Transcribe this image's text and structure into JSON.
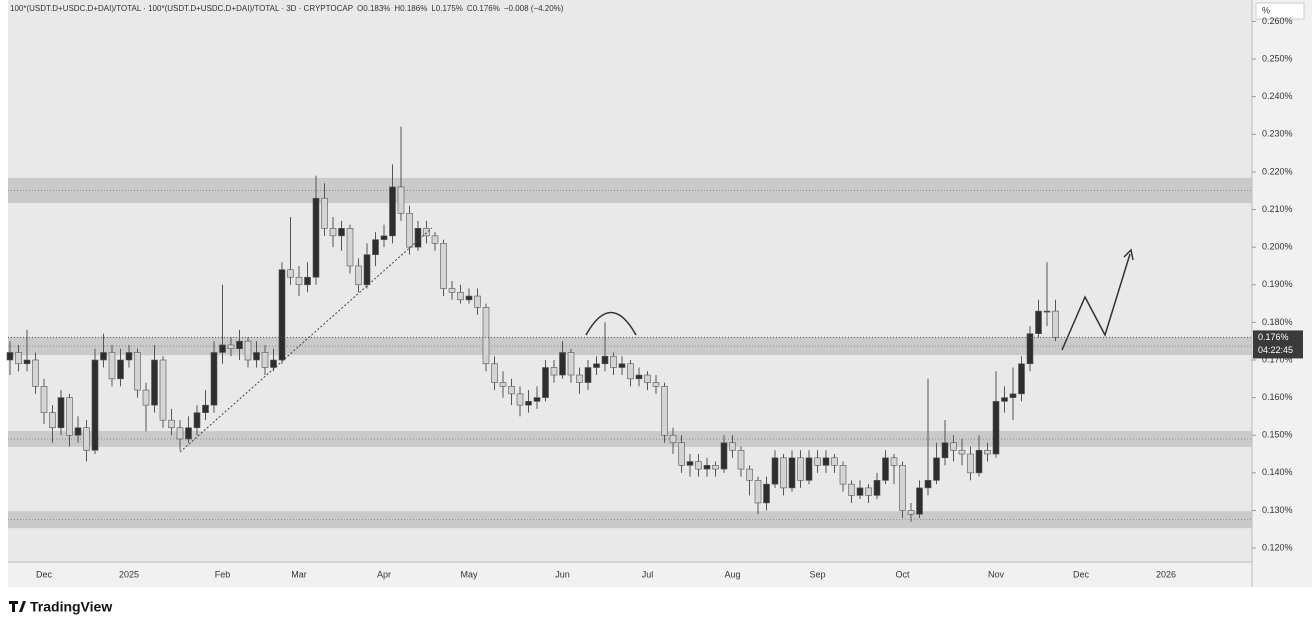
{
  "chart_data": {
    "type": "candlestick",
    "legend": {
      "symbol": "100*(USDT.D+USDC.D+DAI)/TOTAL · 100*(USDT.D+USDC.D+DAI)/TOTAL · 3D · CRYPTOCAP",
      "ohlc": [
        "O0.183%",
        "H0.186%",
        "L0.175%",
        "C0.176%"
      ],
      "change": "−0.008 (−4.20%)"
    },
    "unit_button": "%",
    "brand": "TradingView",
    "countdown": "04:22:45",
    "last_price": {
      "value": 0.176,
      "label": "0.176%"
    },
    "up_color": "#2e2e2e",
    "down_color": "#d4d4d4",
    "ylim": [
      0.1163,
      0.2657
    ],
    "yticks": [
      {
        "value": 0.12,
        "label": "0.120%"
      },
      {
        "value": 0.13,
        "label": "0.130%"
      },
      {
        "value": 0.14,
        "label": "0.140%"
      },
      {
        "value": 0.15,
        "label": "0.150%"
      },
      {
        "value": 0.16,
        "label": "0.160%"
      },
      {
        "value": 0.17,
        "label": "0.170%"
      },
      {
        "value": 0.18,
        "label": "0.180%"
      },
      {
        "value": 0.19,
        "label": "0.190%"
      },
      {
        "value": 0.2,
        "label": "0.200%"
      },
      {
        "value": 0.21,
        "label": "0.210%"
      },
      {
        "value": 0.22,
        "label": "0.220%"
      },
      {
        "value": 0.23,
        "label": "0.230%"
      },
      {
        "value": 0.24,
        "label": "0.240%"
      },
      {
        "value": 0.25,
        "label": "0.250%"
      },
      {
        "value": 0.26,
        "label": "0.260%"
      }
    ],
    "zones": [
      [
        0.2117,
        0.2184
      ],
      [
        0.1713,
        0.1761
      ],
      [
        0.1469,
        0.1511
      ],
      [
        0.1253,
        0.1298
      ]
    ],
    "categories": [
      null,
      null,
      null,
      null,
      "Dec",
      null,
      null,
      null,
      null,
      null,
      null,
      null,
      null,
      null,
      "2025",
      null,
      null,
      null,
      null,
      null,
      null,
      null,
      null,
      null,
      null,
      "Feb",
      null,
      null,
      null,
      null,
      null,
      null,
      null,
      null,
      "Mar",
      null,
      null,
      null,
      null,
      null,
      null,
      null,
      null,
      null,
      "Apr",
      null,
      null,
      null,
      null,
      null,
      null,
      null,
      null,
      null,
      "May",
      null,
      null,
      null,
      null,
      null,
      null,
      null,
      null,
      null,
      null,
      "Jun",
      null,
      null,
      null,
      null,
      null,
      null,
      null,
      null,
      null,
      "Jul",
      null,
      null,
      null,
      null,
      null,
      null,
      null,
      null,
      null,
      "Aug",
      null,
      null,
      null,
      null,
      null,
      null,
      null,
      null,
      null,
      "Sep",
      null,
      null,
      null,
      null,
      null,
      null,
      null,
      null,
      null,
      "Oct",
      null,
      null,
      null,
      null,
      null,
      null,
      null,
      null,
      null,
      null,
      "Nov",
      null,
      null,
      null,
      null,
      null,
      null,
      null,
      null,
      null,
      "Dec",
      null,
      null,
      null,
      null,
      null,
      null,
      null,
      null,
      null,
      "2026",
      null,
      null,
      null,
      null,
      null,
      null,
      null,
      null,
      null
    ],
    "candles": [
      [
        0.17,
        0.175,
        0.166,
        0.172
      ],
      [
        0.172,
        0.174,
        0.167,
        0.169
      ],
      [
        0.169,
        0.178,
        0.167,
        0.17
      ],
      [
        0.17,
        0.172,
        0.161,
        0.163
      ],
      [
        0.163,
        0.165,
        0.153,
        0.156
      ],
      [
        0.156,
        0.158,
        0.148,
        0.152
      ],
      [
        0.152,
        0.162,
        0.15,
        0.16
      ],
      [
        0.16,
        0.161,
        0.147,
        0.15
      ],
      [
        0.15,
        0.155,
        0.148,
        0.152
      ],
      [
        0.152,
        0.154,
        0.143,
        0.146
      ],
      [
        0.146,
        0.173,
        0.145,
        0.17
      ],
      [
        0.17,
        0.177,
        0.168,
        0.172
      ],
      [
        0.172,
        0.174,
        0.163,
        0.165
      ],
      [
        0.165,
        0.173,
        0.163,
        0.17
      ],
      [
        0.17,
        0.174,
        0.168,
        0.172
      ],
      [
        0.172,
        0.173,
        0.16,
        0.162
      ],
      [
        0.162,
        0.164,
        0.151,
        0.158
      ],
      [
        0.158,
        0.174,
        0.156,
        0.17
      ],
      [
        0.17,
        0.171,
        0.152,
        0.154
      ],
      [
        0.154,
        0.157,
        0.15,
        0.152
      ],
      [
        0.152,
        0.154,
        0.146,
        0.149
      ],
      [
        0.149,
        0.155,
        0.148,
        0.152
      ],
      [
        0.152,
        0.158,
        0.15,
        0.156
      ],
      [
        0.156,
        0.162,
        0.154,
        0.158
      ],
      [
        0.158,
        0.175,
        0.156,
        0.172
      ],
      [
        0.172,
        0.19,
        0.169,
        0.174
      ],
      [
        0.174,
        0.176,
        0.171,
        0.173
      ],
      [
        0.173,
        0.178,
        0.17,
        0.175
      ],
      [
        0.175,
        0.176,
        0.168,
        0.17
      ],
      [
        0.17,
        0.175,
        0.168,
        0.172
      ],
      [
        0.172,
        0.174,
        0.166,
        0.168
      ],
      [
        0.168,
        0.173,
        0.167,
        0.17
      ],
      [
        0.17,
        0.196,
        0.169,
        0.194
      ],
      [
        0.194,
        0.208,
        0.19,
        0.192
      ],
      [
        0.192,
        0.195,
        0.187,
        0.19
      ],
      [
        0.19,
        0.196,
        0.188,
        0.192
      ],
      [
        0.192,
        0.219,
        0.19,
        0.213
      ],
      [
        0.213,
        0.217,
        0.203,
        0.205
      ],
      [
        0.205,
        0.208,
        0.2,
        0.203
      ],
      [
        0.203,
        0.207,
        0.199,
        0.205
      ],
      [
        0.205,
        0.206,
        0.193,
        0.195
      ],
      [
        0.195,
        0.197,
        0.188,
        0.19
      ],
      [
        0.19,
        0.201,
        0.189,
        0.198
      ],
      [
        0.198,
        0.204,
        0.195,
        0.202
      ],
      [
        0.202,
        0.206,
        0.2,
        0.203
      ],
      [
        0.203,
        0.222,
        0.201,
        0.216
      ],
      [
        0.216,
        0.232,
        0.207,
        0.209
      ],
      [
        0.209,
        0.211,
        0.198,
        0.2
      ],
      [
        0.2,
        0.207,
        0.199,
        0.205
      ],
      [
        0.205,
        0.207,
        0.201,
        0.203
      ],
      [
        0.203,
        0.204,
        0.199,
        0.201
      ],
      [
        0.201,
        0.202,
        0.187,
        0.189
      ],
      [
        0.189,
        0.191,
        0.186,
        0.188
      ],
      [
        0.188,
        0.19,
        0.185,
        0.186
      ],
      [
        0.186,
        0.189,
        0.185,
        0.187
      ],
      [
        0.187,
        0.189,
        0.182,
        0.184
      ],
      [
        0.184,
        0.185,
        0.167,
        0.169
      ],
      [
        0.169,
        0.171,
        0.162,
        0.164
      ],
      [
        0.164,
        0.167,
        0.16,
        0.163
      ],
      [
        0.163,
        0.165,
        0.158,
        0.161
      ],
      [
        0.161,
        0.163,
        0.155,
        0.158
      ],
      [
        0.158,
        0.162,
        0.156,
        0.159
      ],
      [
        0.159,
        0.163,
        0.157,
        0.16
      ],
      [
        0.16,
        0.17,
        0.159,
        0.168
      ],
      [
        0.168,
        0.17,
        0.164,
        0.166
      ],
      [
        0.166,
        0.175,
        0.165,
        0.172
      ],
      [
        0.172,
        0.173,
        0.164,
        0.166
      ],
      [
        0.166,
        0.168,
        0.161,
        0.164
      ],
      [
        0.164,
        0.17,
        0.162,
        0.168
      ],
      [
        0.168,
        0.171,
        0.166,
        0.169
      ],
      [
        0.169,
        0.18,
        0.167,
        0.171
      ],
      [
        0.171,
        0.172,
        0.166,
        0.168
      ],
      [
        0.168,
        0.171,
        0.166,
        0.169
      ],
      [
        0.169,
        0.17,
        0.163,
        0.165
      ],
      [
        0.165,
        0.168,
        0.163,
        0.166
      ],
      [
        0.166,
        0.167,
        0.162,
        0.164
      ],
      [
        0.164,
        0.166,
        0.161,
        0.163
      ],
      [
        0.163,
        0.164,
        0.148,
        0.15
      ],
      [
        0.15,
        0.152,
        0.145,
        0.148
      ],
      [
        0.148,
        0.15,
        0.14,
        0.142
      ],
      [
        0.142,
        0.145,
        0.139,
        0.143
      ],
      [
        0.143,
        0.145,
        0.139,
        0.141
      ],
      [
        0.141,
        0.144,
        0.139,
        0.142
      ],
      [
        0.142,
        0.143,
        0.139,
        0.141
      ],
      [
        0.141,
        0.15,
        0.14,
        0.148
      ],
      [
        0.148,
        0.15,
        0.144,
        0.146
      ],
      [
        0.146,
        0.147,
        0.139,
        0.141
      ],
      [
        0.141,
        0.142,
        0.134,
        0.138
      ],
      [
        0.138,
        0.139,
        0.129,
        0.132
      ],
      [
        0.132,
        0.139,
        0.13,
        0.137
      ],
      [
        0.137,
        0.146,
        0.136,
        0.144
      ],
      [
        0.144,
        0.145,
        0.134,
        0.136
      ],
      [
        0.136,
        0.146,
        0.135,
        0.144
      ],
      [
        0.144,
        0.146,
        0.136,
        0.138
      ],
      [
        0.138,
        0.146,
        0.137,
        0.144
      ],
      [
        0.144,
        0.146,
        0.14,
        0.142
      ],
      [
        0.142,
        0.146,
        0.14,
        0.144
      ],
      [
        0.144,
        0.145,
        0.14,
        0.142
      ],
      [
        0.142,
        0.143,
        0.135,
        0.137
      ],
      [
        0.137,
        0.138,
        0.132,
        0.134
      ],
      [
        0.134,
        0.138,
        0.133,
        0.136
      ],
      [
        0.136,
        0.137,
        0.132,
        0.134
      ],
      [
        0.134,
        0.14,
        0.133,
        0.138
      ],
      [
        0.138,
        0.146,
        0.137,
        0.144
      ],
      [
        0.144,
        0.145,
        0.137,
        0.142
      ],
      [
        0.142,
        0.143,
        0.128,
        0.13
      ],
      [
        0.13,
        0.132,
        0.127,
        0.129
      ],
      [
        0.129,
        0.138,
        0.128,
        0.136
      ],
      [
        0.136,
        0.165,
        0.134,
        0.138
      ],
      [
        0.138,
        0.148,
        0.137,
        0.144
      ],
      [
        0.144,
        0.154,
        0.142,
        0.148
      ],
      [
        0.148,
        0.15,
        0.143,
        0.146
      ],
      [
        0.146,
        0.149,
        0.142,
        0.145
      ],
      [
        0.145,
        0.147,
        0.138,
        0.14
      ],
      [
        0.14,
        0.15,
        0.139,
        0.146
      ],
      [
        0.146,
        0.148,
        0.143,
        0.145
      ],
      [
        0.145,
        0.167,
        0.144,
        0.159
      ],
      [
        0.159,
        0.163,
        0.156,
        0.16
      ],
      [
        0.16,
        0.168,
        0.154,
        0.161
      ],
      [
        0.161,
        0.171,
        0.159,
        0.169
      ],
      [
        0.169,
        0.179,
        0.167,
        0.177
      ],
      [
        0.177,
        0.186,
        0.176,
        0.183
      ],
      [
        0.183,
        0.196,
        0.179,
        0.183
      ],
      [
        0.183,
        0.186,
        0.175,
        0.176
      ],
      null,
      null,
      null,
      null,
      null,
      null,
      null,
      null,
      null,
      null,
      null,
      null,
      null,
      null,
      null,
      null,
      null,
      null,
      null,
      null,
      null,
      null
    ]
  }
}
